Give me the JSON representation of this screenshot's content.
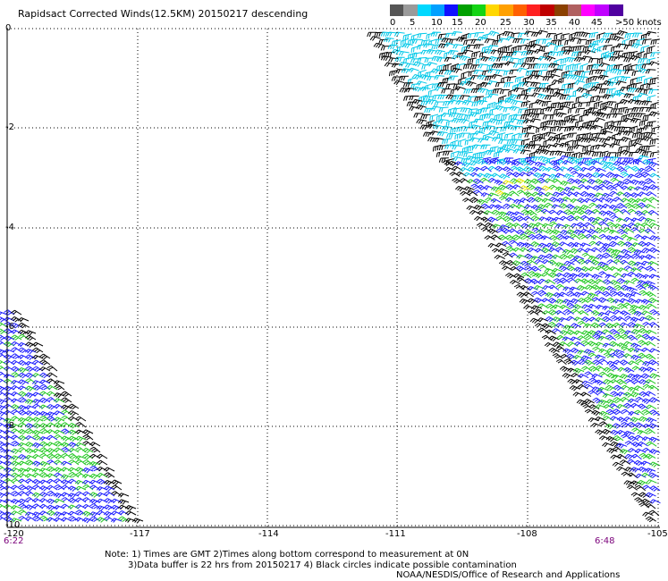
{
  "title": "Rapidsact Corrected Winds(12.5KM) 20150217 descending",
  "colorbar": {
    "colors": [
      "#555555",
      "#9a9a9a",
      "#00d8ff",
      "#00a0ff",
      "#1010ff",
      "#00a000",
      "#14d414",
      "#ffd700",
      "#ffa000",
      "#ff6000",
      "#ff2020",
      "#c00000",
      "#8b4000",
      "#b06060",
      "#ff00ff",
      "#c000ff",
      "#5000a0"
    ],
    "labels": [
      "0",
      "5",
      "10",
      "15",
      "20",
      "25",
      "30",
      "35",
      "40",
      "45",
      ">50 knots"
    ]
  },
  "axes": {
    "x_ticks": [
      "-120",
      "-117",
      "-114",
      "-111",
      "-108",
      "-105"
    ],
    "y_ticks": [
      "0",
      "-2",
      "-4",
      "-6",
      "-8",
      "-10"
    ]
  },
  "times": {
    "left": "6:22",
    "right": "6:48"
  },
  "notes": {
    "line1": "Note: 1) Times are GMT 2)Times along bottom correspond to measurement at 0N",
    "line2": "3)Data buffer is 22 hrs from 20150217 4) Black circles indicate possible contamination",
    "line3": "NOAA/NESDIS/Office of Research and Applications"
  },
  "wind_colors": {
    "black": "#000000",
    "cyan": "#00c8e8",
    "blue": "#1a1aff",
    "green": "#22c822",
    "yellow": "#e8e800"
  }
}
